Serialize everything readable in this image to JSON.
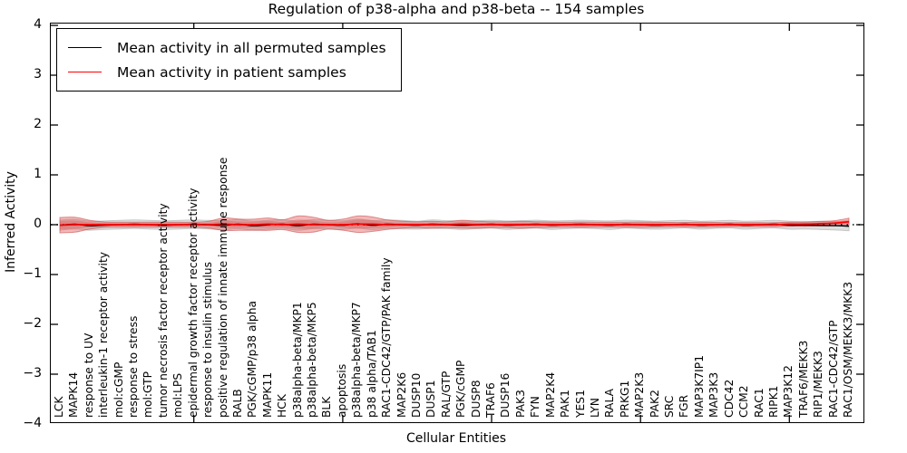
{
  "title": "Regulation of p38-alpha and p38-beta -- 154 samples",
  "legend": {
    "items": [
      {
        "label": "Mean activity in all permuted samples",
        "color": "#000000"
      },
      {
        "label": "Mean activity in patient samples",
        "color": "#ff0000"
      }
    ]
  },
  "axes": {
    "xlabel": "Cellular Entities",
    "ylabel": "Inferred Activity"
  },
  "chart_data": {
    "type": "line",
    "title": "Regulation of p38-alpha and p38-beta -- 154 samples",
    "xlabel": "Cellular Entities",
    "ylabel": "Inferred Activity",
    "ylim": [
      -4,
      4
    ],
    "yticks": [
      {
        "v": 4,
        "label": "4"
      },
      {
        "v": 3,
        "label": "3"
      },
      {
        "v": 2,
        "label": "2"
      },
      {
        "v": 1,
        "label": "1"
      },
      {
        "v": 0,
        "label": "0"
      },
      {
        "v": -1,
        "label": "−1"
      },
      {
        "v": -2,
        "label": "−2"
      },
      {
        "v": -3,
        "label": "−3"
      },
      {
        "v": -4,
        "label": "−4"
      }
    ],
    "xtick_indices": [
      9,
      19,
      29,
      39,
      49
    ],
    "grid": false,
    "legend_position": "upper left",
    "zero_line": {
      "show": true,
      "style": "dotted",
      "color": "#000000"
    },
    "categories": [
      "LCK",
      "MAPK14",
      "response to UV",
      "interleukin-1 receptor activity",
      "mol:cGMP",
      "response to stress",
      "mol:GTP",
      "tumor necrosis factor receptor activity",
      "mol:LPS",
      "epidermal growth factor receptor activity",
      "response to insulin stimulus",
      "positive regulation of innate immune response",
      "RALB",
      "PGK/cGMP/p38 alpha",
      "MAPK11",
      "HCK",
      "p38alpha-beta/MKP1",
      "p38alpha-beta/MKP5",
      "BLK",
      "apoptosis",
      "p38alpha-beta/MKP7",
      "p38 alpha/TAB1",
      "RAC1-CDC42/GTP/PAK family",
      "MAP2K6",
      "DUSP10",
      "DUSP1",
      "RAL/GTP",
      "PGK/cGMP",
      "DUSP8",
      "TRAF6",
      "DUSP16",
      "PAK3",
      "FYN",
      "MAP2K4",
      "PAK1",
      "YES1",
      "LYN",
      "RALA",
      "PRKG1",
      "MAP2K3",
      "PAK2",
      "SRC",
      "FGR",
      "MAP3K7IP1",
      "MAP3K3",
      "CDC42",
      "CCM2",
      "RAC1",
      "RIPK1",
      "MAP3K12",
      "TRAF6/MEKK3",
      "RIP1/MEKK3",
      "RAC1-CDC42/GTP",
      "RAC1/OSM/MEKK3/MKK3"
    ],
    "series": [
      {
        "name": "Mean activity in all permuted samples",
        "color": "#000000",
        "values": [
          -0.01,
          0.01,
          -0.02,
          -0.01,
          0.0,
          0.01,
          0.0,
          -0.01,
          0.0,
          0.01,
          0.0,
          -0.01,
          0.01,
          -0.02,
          0.0,
          0.01,
          -0.02,
          0.01,
          0.0,
          -0.01,
          0.02,
          -0.01,
          0.01,
          0.0,
          -0.01,
          0.01,
          0.0,
          -0.01,
          0.0,
          0.01,
          -0.01,
          0.0,
          0.01,
          -0.01,
          0.0,
          0.01,
          0.0,
          -0.01,
          0.01,
          0.0,
          -0.01,
          0.0,
          0.01,
          -0.01,
          0.0,
          0.01,
          -0.01,
          0.0,
          0.01,
          -0.01,
          -0.01,
          -0.015,
          -0.02,
          -0.03
        ]
      },
      {
        "name": "Mean activity in patient samples",
        "color": "#ff0000",
        "values": [
          -0.01,
          0.0,
          0.0,
          0.0,
          0.0,
          0.0,
          0.0,
          0.0,
          0.0,
          0.0,
          0.0,
          0.01,
          0.0,
          0.0,
          0.01,
          0.0,
          0.01,
          0.0,
          0.0,
          0.0,
          0.01,
          0.01,
          0.0,
          0.0,
          0.0,
          0.0,
          0.0,
          0.01,
          0.0,
          0.0,
          0.0,
          0.0,
          0.0,
          0.0,
          0.0,
          0.0,
          0.0,
          0.0,
          0.0,
          0.0,
          0.0,
          0.0,
          0.0,
          0.0,
          0.0,
          0.0,
          0.0,
          0.0,
          0.0,
          0.01,
          0.01,
          0.02,
          0.03,
          0.06
        ]
      }
    ],
    "bands": [
      {
        "name": "permuted samples spread",
        "color": "#d9d9d9",
        "edge_color": "#c6c6c6",
        "halfwidth": [
          0.1,
          0.095,
          0.09,
          0.085,
          0.085,
          0.085,
          0.085,
          0.085,
          0.085,
          0.085,
          0.085,
          0.09,
          0.09,
          0.09,
          0.09,
          0.085,
          0.09,
          0.09,
          0.085,
          0.085,
          0.09,
          0.09,
          0.085,
          0.085,
          0.08,
          0.085,
          0.08,
          0.085,
          0.08,
          0.08,
          0.085,
          0.08,
          0.08,
          0.085,
          0.08,
          0.08,
          0.08,
          0.085,
          0.08,
          0.08,
          0.08,
          0.08,
          0.075,
          0.08,
          0.075,
          0.075,
          0.08,
          0.075,
          0.075,
          0.08,
          0.075,
          0.08,
          0.085,
          0.09
        ]
      },
      {
        "name": "patient samples spread",
        "color": "#e05555",
        "edge_color": "#c84444",
        "halfwidth": [
          0.155,
          0.15,
          0.09,
          0.055,
          0.05,
          0.05,
          0.05,
          0.05,
          0.05,
          0.05,
          0.07,
          0.125,
          0.115,
          0.11,
          0.125,
          0.1,
          0.165,
          0.15,
          0.09,
          0.11,
          0.165,
          0.145,
          0.095,
          0.07,
          0.06,
          0.07,
          0.06,
          0.08,
          0.07,
          0.06,
          0.06,
          0.07,
          0.06,
          0.055,
          0.05,
          0.055,
          0.05,
          0.05,
          0.05,
          0.055,
          0.05,
          0.045,
          0.045,
          0.05,
          0.045,
          0.04,
          0.04,
          0.04,
          0.04,
          0.04,
          0.04,
          0.045,
          0.05,
          0.07
        ]
      }
    ]
  }
}
